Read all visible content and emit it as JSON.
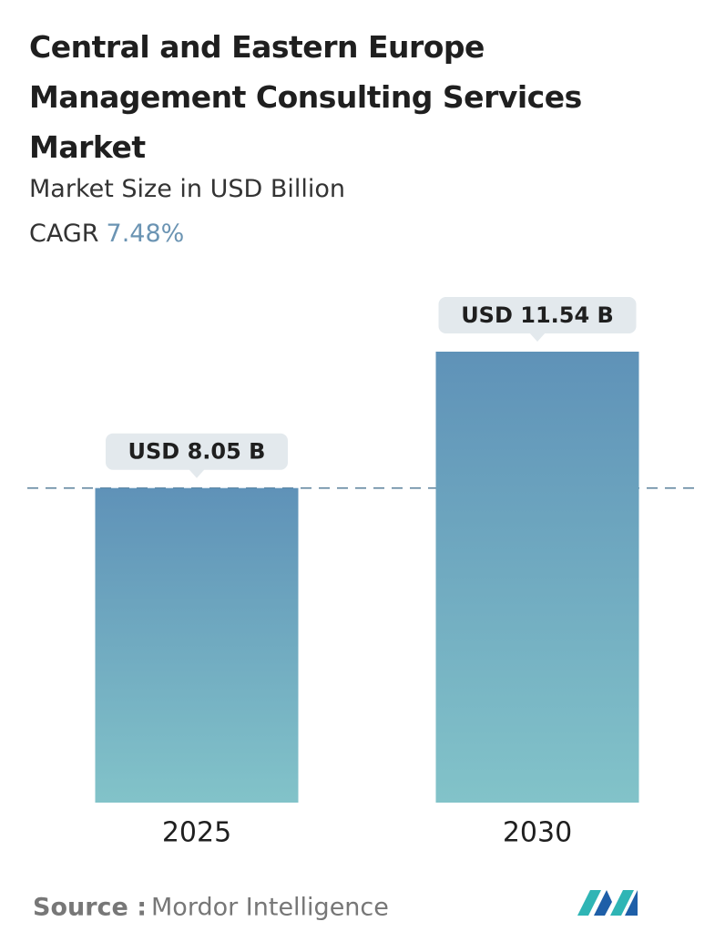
{
  "chart_data": {
    "type": "bar",
    "title": "Central and Eastern Europe Management Consulting Services Market",
    "subtitle": "Market Size in USD Billion",
    "cagr": {
      "label": "CAGR",
      "value": 7.48,
      "value_label": "7.48%"
    },
    "categories": [
      "2025",
      "2030"
    ],
    "values": [
      8.05,
      11.54
    ],
    "value_labels": [
      "USD 8.05 B",
      "USD 11.54 B"
    ],
    "colors": [
      "#5f92b8",
      "#82c3c9"
    ],
    "reference_line": true,
    "source": {
      "label": "Source :",
      "text": "Mordor Intelligence"
    }
  }
}
